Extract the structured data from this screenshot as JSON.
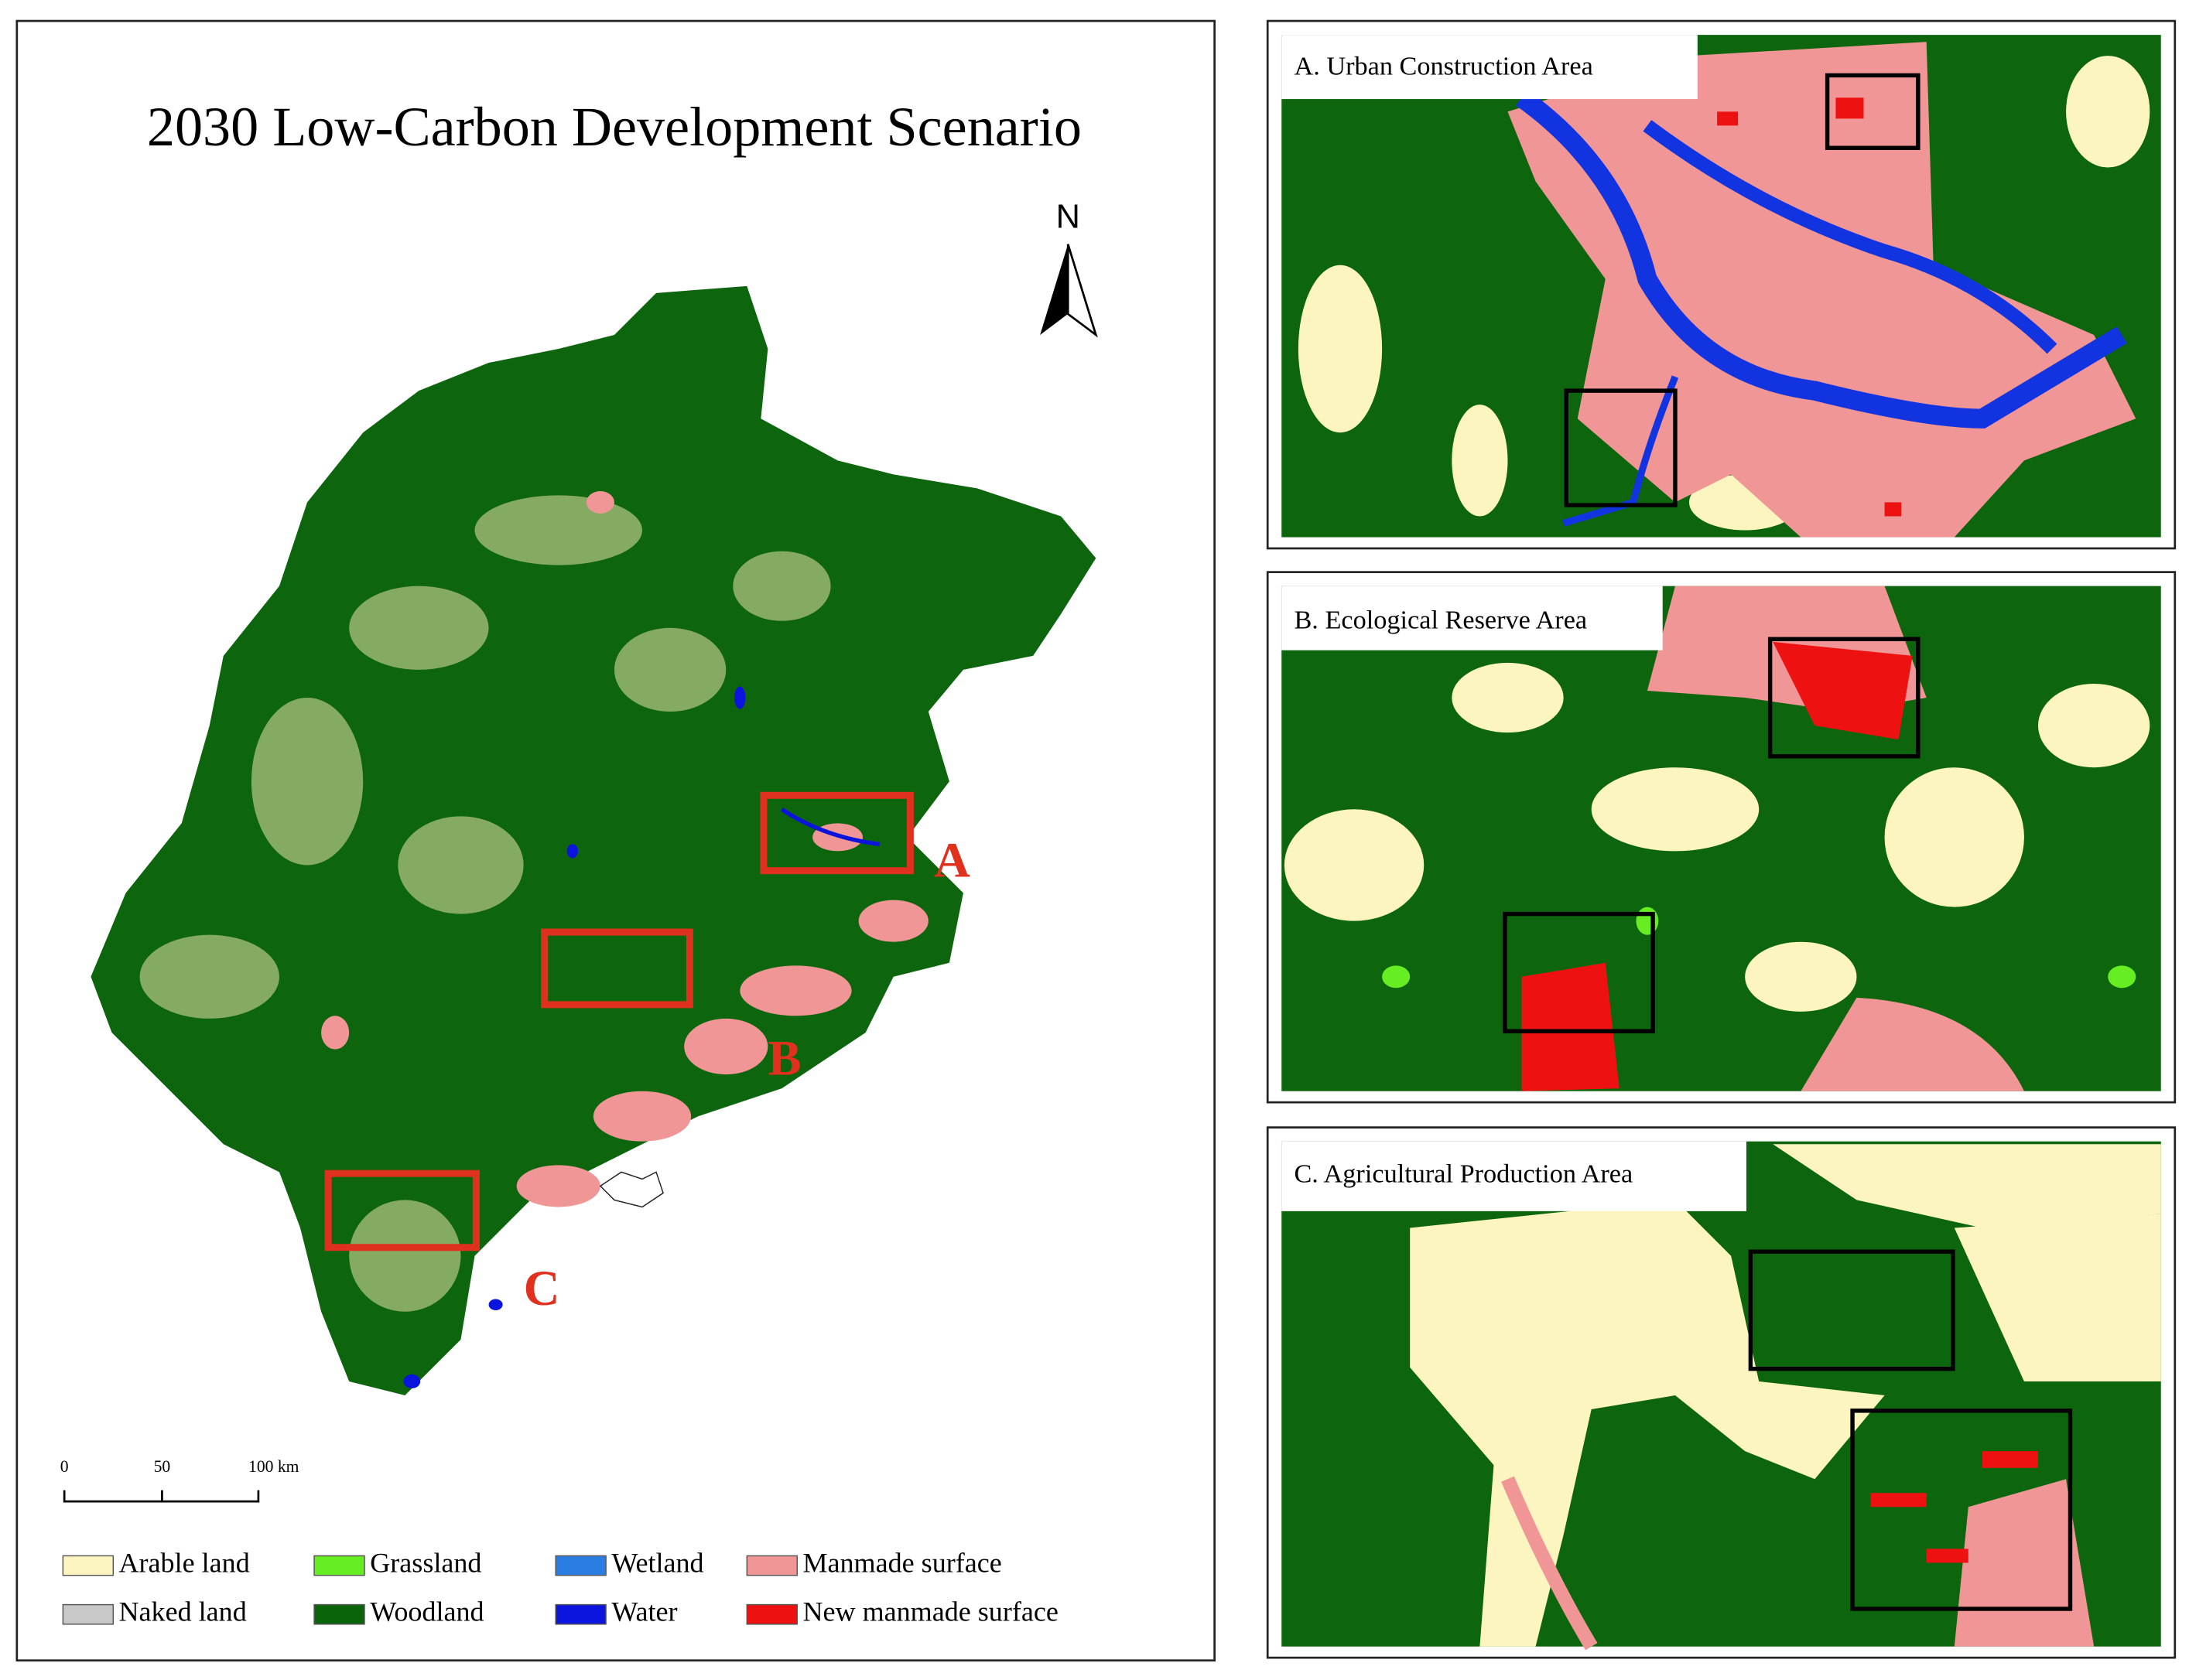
{
  "map": {
    "title": "2030 Low-Carbon Development Scenario",
    "north": "N",
    "scale_labels": [
      "0",
      "50",
      "100 km"
    ],
    "area_labels": [
      "A",
      "B",
      "C"
    ]
  },
  "panels": [
    {
      "title": "A. Urban Construction Area"
    },
    {
      "title": "B. Ecological Reserve Area"
    },
    {
      "title": "C. Agricultural Production Area"
    }
  ],
  "legend": [
    {
      "label": "Arable land",
      "color": "#fdf5c0"
    },
    {
      "label": "Grassland",
      "color": "#66ee22"
    },
    {
      "label": "Wetland",
      "color": "#2a7de1"
    },
    {
      "label": "Manmade surface",
      "color": "#f09696"
    },
    {
      "label": "Naked land",
      "color": "#c8c8c8"
    },
    {
      "label": "Woodland",
      "color": "#0a640a"
    },
    {
      "label": "Water",
      "color": "#0a14dc"
    },
    {
      "label": "New manmade surface",
      "color": "#ee1111"
    }
  ]
}
